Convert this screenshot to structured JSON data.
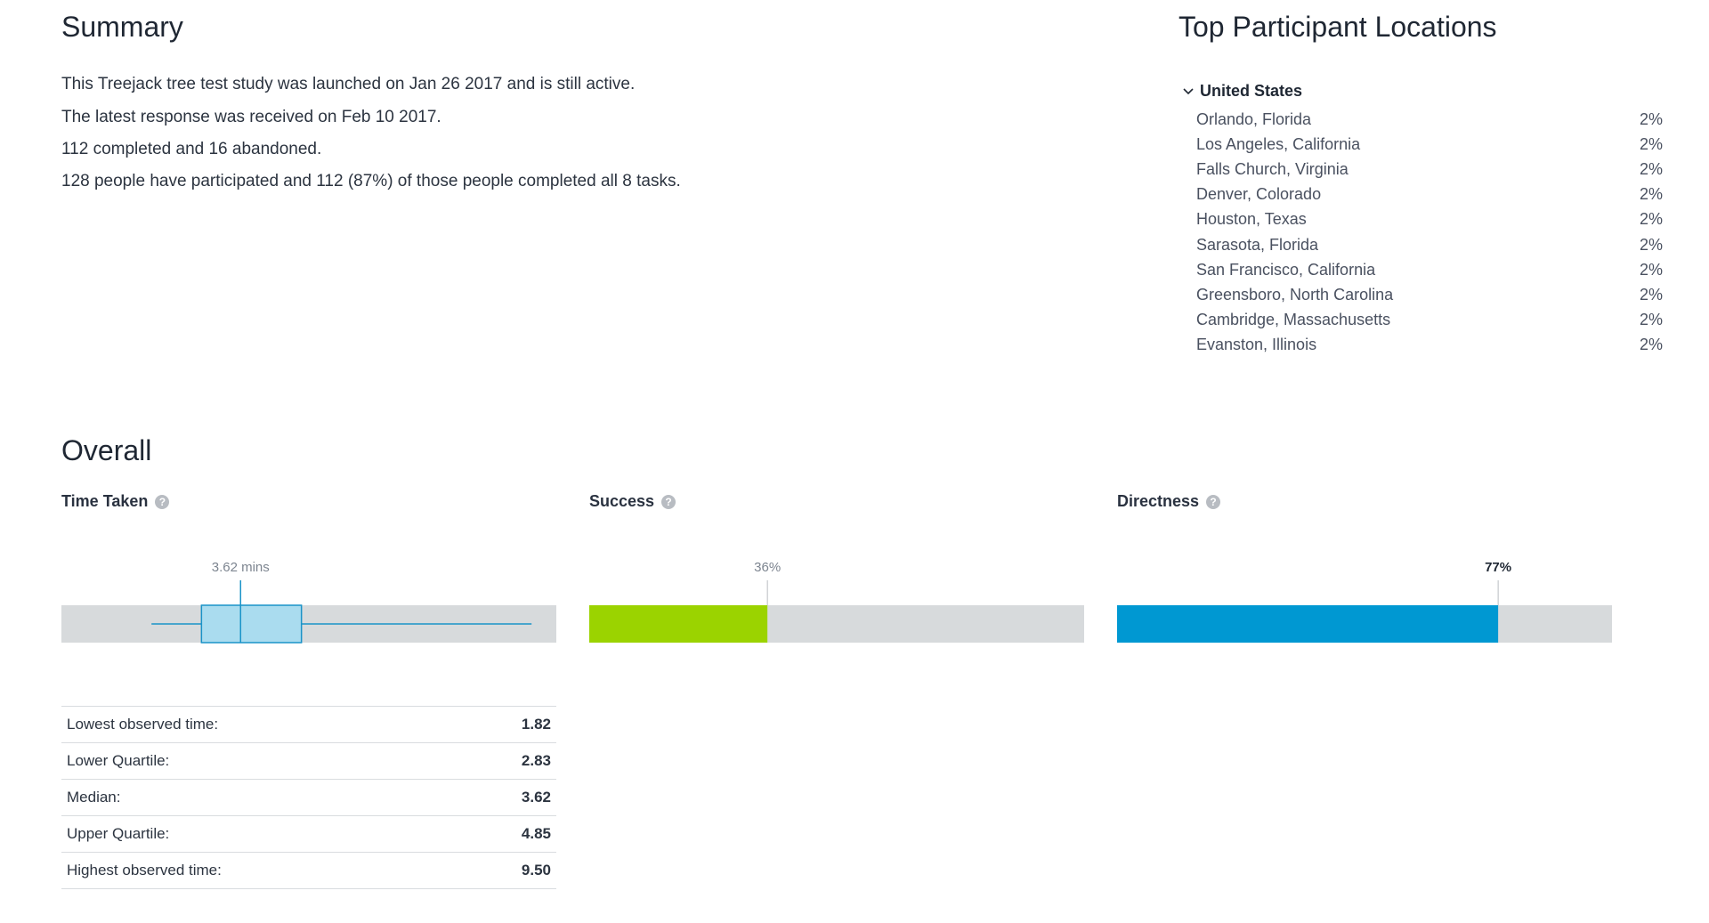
{
  "summary": {
    "title": "Summary",
    "lines": [
      "This Treejack tree test study was launched on Jan 26 2017 and is still active.",
      "The latest response was received on Feb 10 2017.",
      "112 completed and 16 abandoned.",
      "128 people have participated and 112 (87%) of those people completed all 8 tasks."
    ]
  },
  "locations": {
    "title": "Top Participant Locations",
    "country": "United States",
    "items": [
      {
        "city": "Orlando, Florida",
        "pct": "2%"
      },
      {
        "city": "Los Angeles, California",
        "pct": "2%"
      },
      {
        "city": "Falls Church, Virginia",
        "pct": "2%"
      },
      {
        "city": "Denver, Colorado",
        "pct": "2%"
      },
      {
        "city": "Houston, Texas",
        "pct": "2%"
      },
      {
        "city": "Sarasota, Florida",
        "pct": "2%"
      },
      {
        "city": "San Francisco, California",
        "pct": "2%"
      },
      {
        "city": "Greensboro, North Carolina",
        "pct": "2%"
      },
      {
        "city": "Cambridge, Massachusetts",
        "pct": "2%"
      },
      {
        "city": "Evanston, Illinois",
        "pct": "2%"
      }
    ]
  },
  "overall": {
    "title": "Overall",
    "time_taken": {
      "label": "Time Taken",
      "help_icon": "question-circle-icon"
    },
    "success": {
      "label": "Success",
      "help_icon": "question-circle-icon"
    },
    "directness": {
      "label": "Directness",
      "help_icon": "question-circle-icon"
    }
  },
  "stats": [
    {
      "label": "Lowest observed time:",
      "value": "1.82"
    },
    {
      "label": "Lower Quartile:",
      "value": "2.83"
    },
    {
      "label": "Median:",
      "value": "3.62"
    },
    {
      "label": "Upper Quartile:",
      "value": "4.85"
    },
    {
      "label": "Highest observed time:",
      "value": "9.50"
    }
  ],
  "colors": {
    "track": "#d7dadc",
    "box_fill": "#aadcef",
    "box_stroke": "#1a93c8",
    "success_fill": "#9bd300",
    "directness_fill": "#0098d2",
    "axis_text": "#7d8590"
  },
  "chart_data": [
    {
      "type": "boxplot",
      "title": "Time Taken",
      "annotation": "3.62 mins",
      "min": 1.82,
      "q1": 2.83,
      "median": 3.62,
      "q3": 4.85,
      "max": 9.5,
      "xlim": [
        0,
        10
      ],
      "ticks": [
        "0",
        "1",
        "2",
        "3",
        "4",
        "5",
        "6",
        "7",
        "8",
        "9",
        "10"
      ]
    },
    {
      "type": "bar",
      "title": "Success",
      "value": 36,
      "annotation": "36%",
      "xlim": [
        0,
        100
      ],
      "ticks": [
        "0",
        "20",
        "40",
        "60",
        "80",
        "100"
      ]
    },
    {
      "type": "bar",
      "title": "Directness",
      "value": 77,
      "annotation": "77%",
      "xlim": [
        0,
        100
      ],
      "ticks": [
        "0",
        "20",
        "40",
        "60",
        "80",
        "100"
      ]
    }
  ]
}
